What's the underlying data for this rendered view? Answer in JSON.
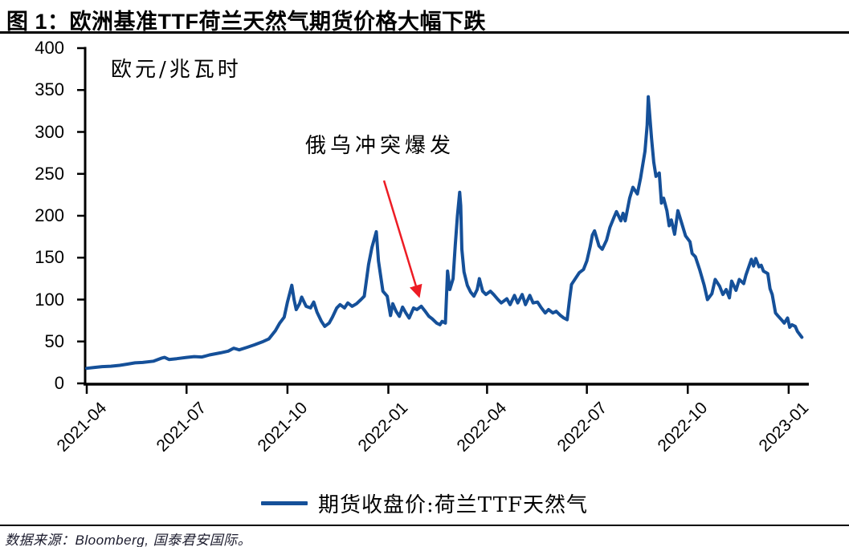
{
  "page": {
    "title": "图 1：欧洲基准TTF荷兰天然气期货价格大幅下跌",
    "footer": "数据来源：Bloomberg, 国泰君安国际。"
  },
  "colors": {
    "line": "#155099",
    "arrow": "#ED1C24",
    "axis": "#000000"
  },
  "chart_data": {
    "type": "line",
    "title": "图 1：欧洲基准TTF荷兰天然气期货价格大幅下跌",
    "unit_label": "欧元/兆瓦时",
    "xlabel": "",
    "ylabel": "欧元/兆瓦时",
    "ylim": [
      0,
      400
    ],
    "y_ticks": [
      0,
      50,
      100,
      150,
      200,
      250,
      300,
      350,
      400
    ],
    "x_range": [
      "2021-04-01",
      "2023-01-15"
    ],
    "x_ticks": [
      {
        "label": "2021-04",
        "date": "2021-04-01"
      },
      {
        "label": "2021-07",
        "date": "2021-07-01"
      },
      {
        "label": "2021-10",
        "date": "2021-10-01"
      },
      {
        "label": "2022-01",
        "date": "2022-01-01"
      },
      {
        "label": "2022-04",
        "date": "2022-04-01"
      },
      {
        "label": "2022-07",
        "date": "2022-07-01"
      },
      {
        "label": "2022-10",
        "date": "2022-10-01"
      },
      {
        "label": "2023-01",
        "date": "2023-01-01"
      }
    ],
    "grid": false,
    "legend_position": "bottom",
    "annotation": {
      "text": "俄乌冲突爆发",
      "arrow_from": [
        "2021-12-28",
        242
      ],
      "arrow_to": [
        "2022-01-29",
        104
      ]
    },
    "series": [
      {
        "name": "期货收盘价:荷兰TTF天然气",
        "color": "#155099",
        "points": [
          [
            "2021-04-01",
            18
          ],
          [
            "2021-04-08",
            19
          ],
          [
            "2021-04-15",
            20
          ],
          [
            "2021-04-23",
            20.5
          ],
          [
            "2021-05-01",
            21.5
          ],
          [
            "2021-05-08",
            23
          ],
          [
            "2021-05-15",
            24.5
          ],
          [
            "2021-05-22",
            25
          ],
          [
            "2021-06-01",
            26.5
          ],
          [
            "2021-06-08",
            30
          ],
          [
            "2021-06-11",
            31
          ],
          [
            "2021-06-15",
            28.5
          ],
          [
            "2021-06-22",
            29.5
          ],
          [
            "2021-07-01",
            31
          ],
          [
            "2021-07-08",
            32
          ],
          [
            "2021-07-15",
            31.5
          ],
          [
            "2021-07-22",
            34
          ],
          [
            "2021-08-01",
            36.5
          ],
          [
            "2021-08-08",
            38.5
          ],
          [
            "2021-08-13",
            42
          ],
          [
            "2021-08-18",
            40
          ],
          [
            "2021-08-25",
            43
          ],
          [
            "2021-09-01",
            46
          ],
          [
            "2021-09-08",
            49.5
          ],
          [
            "2021-09-14",
            53
          ],
          [
            "2021-09-20",
            63
          ],
          [
            "2021-09-24",
            72
          ],
          [
            "2021-09-28",
            79
          ],
          [
            "2021-10-01",
            97
          ],
          [
            "2021-10-05",
            117
          ],
          [
            "2021-10-07",
            100
          ],
          [
            "2021-10-09",
            88
          ],
          [
            "2021-10-12",
            95
          ],
          [
            "2021-10-14",
            103
          ],
          [
            "2021-10-18",
            92
          ],
          [
            "2021-10-22",
            90
          ],
          [
            "2021-10-25",
            97
          ],
          [
            "2021-10-28",
            85
          ],
          [
            "2021-11-01",
            74
          ],
          [
            "2021-11-04",
            68
          ],
          [
            "2021-11-08",
            72
          ],
          [
            "2021-11-11",
            79
          ],
          [
            "2021-11-15",
            90
          ],
          [
            "2021-11-18",
            94
          ],
          [
            "2021-11-22",
            90
          ],
          [
            "2021-11-25",
            96
          ],
          [
            "2021-11-29",
            92
          ],
          [
            "2021-12-03",
            95
          ],
          [
            "2021-12-07",
            100
          ],
          [
            "2021-12-10",
            104
          ],
          [
            "2021-12-14",
            142
          ],
          [
            "2021-12-17",
            162
          ],
          [
            "2021-12-21",
            181
          ],
          [
            "2021-12-23",
            146
          ],
          [
            "2021-12-27",
            110
          ],
          [
            "2021-12-29",
            107
          ],
          [
            "2021-12-31",
            104
          ],
          [
            "2022-01-03",
            81
          ],
          [
            "2022-01-05",
            95
          ],
          [
            "2022-01-08",
            86
          ],
          [
            "2022-01-11",
            80
          ],
          [
            "2022-01-14",
            91
          ],
          [
            "2022-01-17",
            84
          ],
          [
            "2022-01-20",
            78
          ],
          [
            "2022-01-24",
            90
          ],
          [
            "2022-01-27",
            88
          ],
          [
            "2022-01-31",
            92
          ],
          [
            "2022-02-03",
            87
          ],
          [
            "2022-02-07",
            80
          ],
          [
            "2022-02-10",
            77
          ],
          [
            "2022-02-14",
            72
          ],
          [
            "2022-02-17",
            70
          ],
          [
            "2022-02-19",
            74
          ],
          [
            "2022-02-22",
            72
          ],
          [
            "2022-02-24",
            134
          ],
          [
            "2022-02-26",
            112
          ],
          [
            "2022-03-01",
            125
          ],
          [
            "2022-03-03",
            165
          ],
          [
            "2022-03-05",
            200
          ],
          [
            "2022-03-07",
            228
          ],
          [
            "2022-03-08",
            212
          ],
          [
            "2022-03-09",
            160
          ],
          [
            "2022-03-11",
            133
          ],
          [
            "2022-03-14",
            117
          ],
          [
            "2022-03-17",
            109
          ],
          [
            "2022-03-20",
            104
          ],
          [
            "2022-03-23",
            112
          ],
          [
            "2022-03-25",
            125
          ],
          [
            "2022-03-28",
            110
          ],
          [
            "2022-03-31",
            106
          ],
          [
            "2022-04-04",
            110
          ],
          [
            "2022-04-07",
            106
          ],
          [
            "2022-04-11",
            100
          ],
          [
            "2022-04-14",
            96
          ],
          [
            "2022-04-19",
            101
          ],
          [
            "2022-04-22",
            94
          ],
          [
            "2022-04-26",
            105
          ],
          [
            "2022-04-29",
            96
          ],
          [
            "2022-05-03",
            106
          ],
          [
            "2022-05-06",
            94
          ],
          [
            "2022-05-10",
            105
          ],
          [
            "2022-05-13",
            96
          ],
          [
            "2022-05-17",
            97
          ],
          [
            "2022-05-20",
            91
          ],
          [
            "2022-05-24",
            84
          ],
          [
            "2022-05-27",
            88
          ],
          [
            "2022-05-31",
            84
          ],
          [
            "2022-06-03",
            86
          ],
          [
            "2022-06-07",
            81
          ],
          [
            "2022-06-10",
            78
          ],
          [
            "2022-06-13",
            76
          ],
          [
            "2022-06-15",
            98
          ],
          [
            "2022-06-17",
            118
          ],
          [
            "2022-06-21",
            126
          ],
          [
            "2022-06-24",
            132
          ],
          [
            "2022-06-28",
            136
          ],
          [
            "2022-07-01",
            146
          ],
          [
            "2022-07-04",
            163
          ],
          [
            "2022-07-06",
            177
          ],
          [
            "2022-07-08",
            182
          ],
          [
            "2022-07-12",
            164
          ],
          [
            "2022-07-15",
            160
          ],
          [
            "2022-07-19",
            171
          ],
          [
            "2022-07-22",
            186
          ],
          [
            "2022-07-26",
            199
          ],
          [
            "2022-07-28",
            205
          ],
          [
            "2022-08-01",
            194
          ],
          [
            "2022-08-03",
            203
          ],
          [
            "2022-08-05",
            194
          ],
          [
            "2022-08-09",
            221
          ],
          [
            "2022-08-12",
            234
          ],
          [
            "2022-08-16",
            226
          ],
          [
            "2022-08-19",
            245
          ],
          [
            "2022-08-23",
            277
          ],
          [
            "2022-08-25",
            308
          ],
          [
            "2022-08-26",
            342
          ],
          [
            "2022-08-29",
            292
          ],
          [
            "2022-08-31",
            264
          ],
          [
            "2022-09-02",
            247
          ],
          [
            "2022-09-05",
            251
          ],
          [
            "2022-09-07",
            215
          ],
          [
            "2022-09-09",
            221
          ],
          [
            "2022-09-12",
            206
          ],
          [
            "2022-09-14",
            188
          ],
          [
            "2022-09-16",
            195
          ],
          [
            "2022-09-19",
            178
          ],
          [
            "2022-09-22",
            206
          ],
          [
            "2022-09-26",
            189
          ],
          [
            "2022-09-29",
            176
          ],
          [
            "2022-10-03",
            169
          ],
          [
            "2022-10-05",
            155
          ],
          [
            "2022-10-08",
            151
          ],
          [
            "2022-10-12",
            135
          ],
          [
            "2022-10-16",
            117
          ],
          [
            "2022-10-19",
            100
          ],
          [
            "2022-10-23",
            107
          ],
          [
            "2022-10-26",
            124
          ],
          [
            "2022-10-30",
            116
          ],
          [
            "2022-11-02",
            106
          ],
          [
            "2022-11-05",
            112
          ],
          [
            "2022-11-08",
            102
          ],
          [
            "2022-11-10",
            122
          ],
          [
            "2022-11-14",
            111
          ],
          [
            "2022-11-17",
            124
          ],
          [
            "2022-11-21",
            119
          ],
          [
            "2022-11-23",
            129
          ],
          [
            "2022-11-28",
            148
          ],
          [
            "2022-11-30",
            140
          ],
          [
            "2022-12-02",
            149
          ],
          [
            "2022-12-05",
            139
          ],
          [
            "2022-12-07",
            141
          ],
          [
            "2022-12-09",
            134
          ],
          [
            "2022-12-13",
            131
          ],
          [
            "2022-12-15",
            113
          ],
          [
            "2022-12-17",
            106
          ],
          [
            "2022-12-20",
            84
          ],
          [
            "2022-12-22",
            81
          ],
          [
            "2022-12-26",
            75
          ],
          [
            "2022-12-28",
            72
          ],
          [
            "2022-12-31",
            78
          ],
          [
            "2023-01-02",
            67
          ],
          [
            "2023-01-04",
            70
          ],
          [
            "2023-01-07",
            68
          ],
          [
            "2023-01-09",
            62
          ],
          [
            "2023-01-13",
            55
          ]
        ]
      }
    ]
  }
}
